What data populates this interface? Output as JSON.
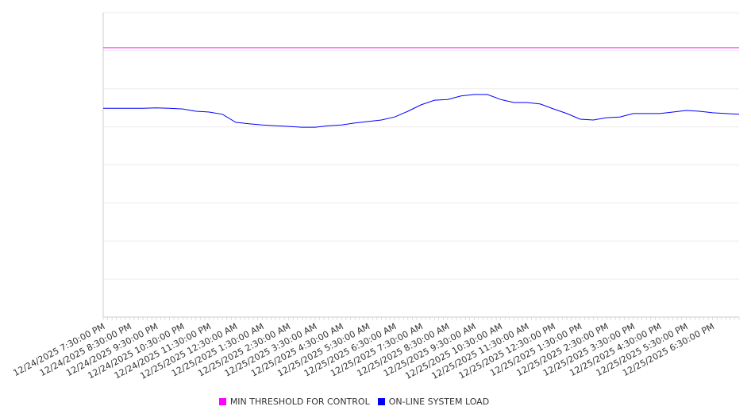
{
  "chart_data": {
    "type": "line",
    "title": "",
    "xlabel": "",
    "ylabel": "",
    "ylim": [
      0,
      8
    ],
    "grid": true,
    "legend_position": "bottom",
    "x_tick_labels": [
      "12/24/2025 7:30:00 PM",
      "12/24/2025 8:30:00 PM",
      "12/24/2025 9:30:00 PM",
      "12/24/2025 10:30:00 PM",
      "12/24/2025 11:30:00 PM",
      "12/25/2025 12:30:00 AM",
      "12/25/2025 1:30:00 AM",
      "12/25/2025 2:30:00 AM",
      "12/25/2025 3:30:00 AM",
      "12/25/2025 4:30:00 AM",
      "12/25/2025 5:30:00 AM",
      "12/25/2025 6:30:00 AM",
      "12/25/2025 7:30:00 AM",
      "12/25/2025 8:30:00 AM",
      "12/25/2025 9:30:00 AM",
      "12/25/2025 10:30:00 AM",
      "12/25/2025 11:30:00 AM",
      "12/25/2025 12:30:00 PM",
      "12/25/2025 1:30:00 PM",
      "12/25/2025 2:30:00 PM",
      "12/25/2025 3:30:00 PM",
      "12/25/2025 4:30:00 PM",
      "12/25/2025 5:30:00 PM",
      "12/25/2025 6:30:00 PM"
    ],
    "x_hours_span": 24,
    "series": [
      {
        "name": "MIN THRESHOLD FOR CONTROL",
        "color": "#ff00ff",
        "x_step_hours": 24,
        "values": [
          7.08,
          7.08
        ]
      },
      {
        "name": "ON-LINE SYSTEM LOAD",
        "color": "#0000ff",
        "x_step_hours": 0.5,
        "values": [
          5.49,
          5.49,
          5.49,
          5.49,
          5.5,
          5.49,
          5.47,
          5.41,
          5.39,
          5.33,
          5.12,
          5.08,
          5.05,
          5.03,
          5.01,
          4.99,
          4.99,
          5.03,
          5.05,
          5.1,
          5.14,
          5.18,
          5.26,
          5.41,
          5.58,
          5.7,
          5.72,
          5.81,
          5.85,
          5.85,
          5.72,
          5.64,
          5.64,
          5.6,
          5.47,
          5.35,
          5.2,
          5.18,
          5.24,
          5.26,
          5.35,
          5.35,
          5.35,
          5.39,
          5.43,
          5.41,
          5.37,
          5.35,
          5.33
        ]
      }
    ]
  }
}
